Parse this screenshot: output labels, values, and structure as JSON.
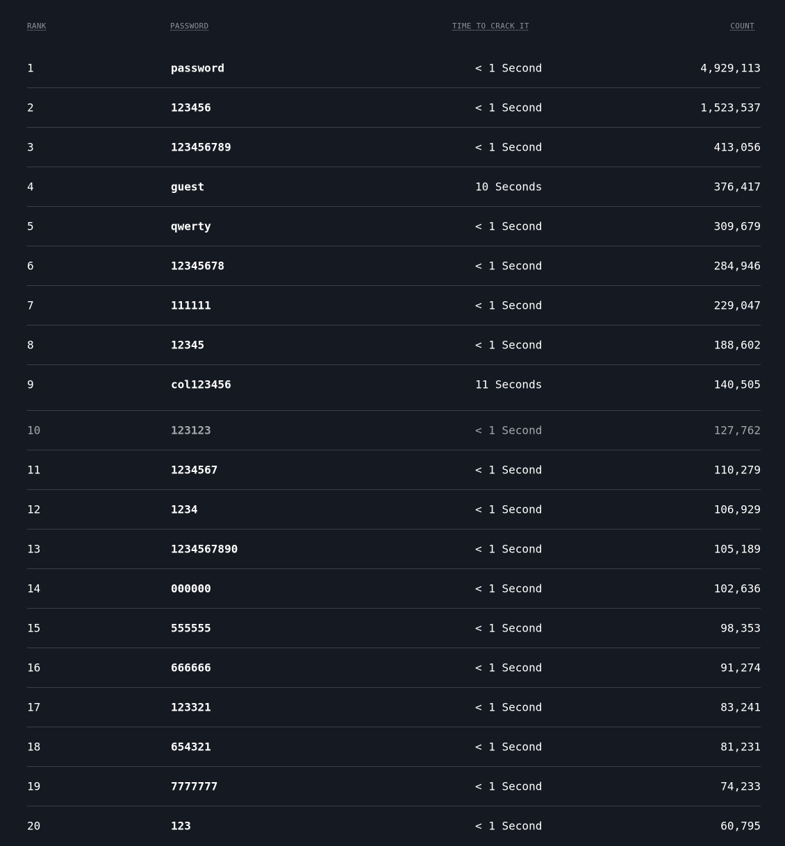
{
  "header": {
    "rank": "RANK",
    "password": "PASSWORD",
    "time": "TIME TO CRACK IT",
    "count": "COUNT"
  },
  "rows": [
    {
      "rank": "1",
      "password": "password",
      "time": "< 1 Second",
      "count": "4,929,113"
    },
    {
      "rank": "2",
      "password": "123456",
      "time": "< 1 Second",
      "count": "1,523,537"
    },
    {
      "rank": "3",
      "password": "123456789",
      "time": "< 1 Second",
      "count": "413,056"
    },
    {
      "rank": "4",
      "password": "guest",
      "time": "10 Seconds",
      "count": "376,417"
    },
    {
      "rank": "5",
      "password": "qwerty",
      "time": "< 1 Second",
      "count": "309,679"
    },
    {
      "rank": "6",
      "password": "12345678",
      "time": "< 1 Second",
      "count": "284,946"
    },
    {
      "rank": "7",
      "password": "111111",
      "time": "< 1 Second",
      "count": "229,047"
    },
    {
      "rank": "8",
      "password": "12345",
      "time": "< 1 Second",
      "count": "188,602"
    },
    {
      "rank": "9",
      "password": "col123456",
      "time": "11 Seconds",
      "count": "140,505"
    },
    {
      "rank": "10",
      "password": "123123",
      "time": "< 1 Second",
      "count": "127,762"
    },
    {
      "rank": "11",
      "password": "1234567",
      "time": "< 1 Second",
      "count": "110,279"
    },
    {
      "rank": "12",
      "password": "1234",
      "time": "< 1 Second",
      "count": "106,929"
    },
    {
      "rank": "13",
      "password": "1234567890",
      "time": "< 1 Second",
      "count": "105,189"
    },
    {
      "rank": "14",
      "password": "000000",
      "time": "< 1 Second",
      "count": "102,636"
    },
    {
      "rank": "15",
      "password": "555555",
      "time": "< 1 Second",
      "count": "98,353"
    },
    {
      "rank": "16",
      "password": "666666",
      "time": "< 1 Second",
      "count": "91,274"
    },
    {
      "rank": "17",
      "password": "123321",
      "time": "< 1 Second",
      "count": "83,241"
    },
    {
      "rank": "18",
      "password": "654321",
      "time": "< 1 Second",
      "count": "81,231"
    },
    {
      "rank": "19",
      "password": "7777777",
      "time": "< 1 Second",
      "count": "74,233"
    },
    {
      "rank": "20",
      "password": "123",
      "time": "< 1 Second",
      "count": "60,795"
    }
  ]
}
